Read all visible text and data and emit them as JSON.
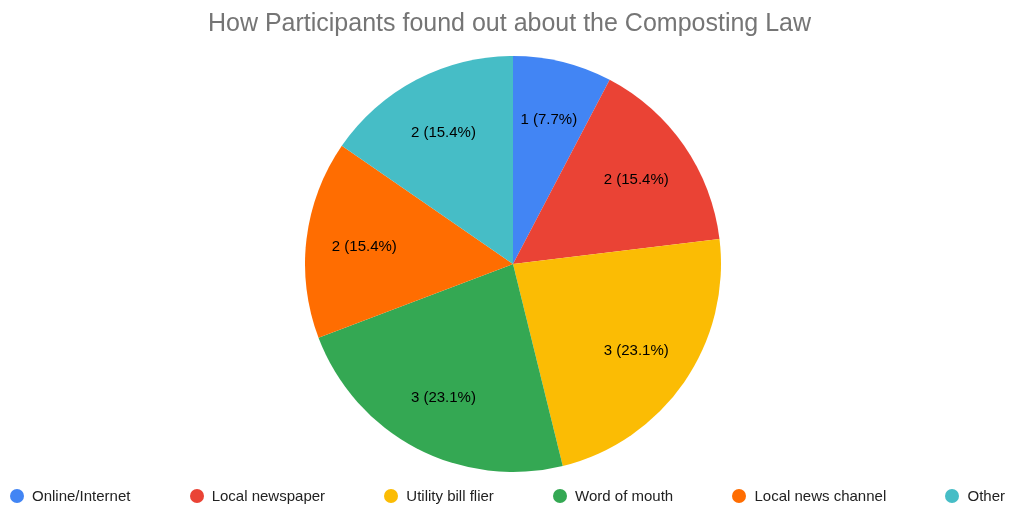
{
  "chart_data": {
    "type": "pie",
    "title": "How Participants found out about the Composting Law",
    "categories": [
      "Online/Internet",
      "Local newspaper",
      "Utility bill flier",
      "Word of mouth",
      "Local news channel",
      "Other"
    ],
    "values": [
      1,
      2,
      3,
      3,
      2,
      2
    ],
    "colors": [
      "#4285f4",
      "#ea4335",
      "#fbbc04",
      "#34a853",
      "#ff6d01",
      "#46bdc6"
    ],
    "value_labels": [
      "1 (7.7%)",
      "2 (15.4%)",
      "3 (23.1%)",
      "3 (23.1%)",
      "2 (15.4%)",
      "2 (15.4%)"
    ],
    "legend": "bottom"
  }
}
